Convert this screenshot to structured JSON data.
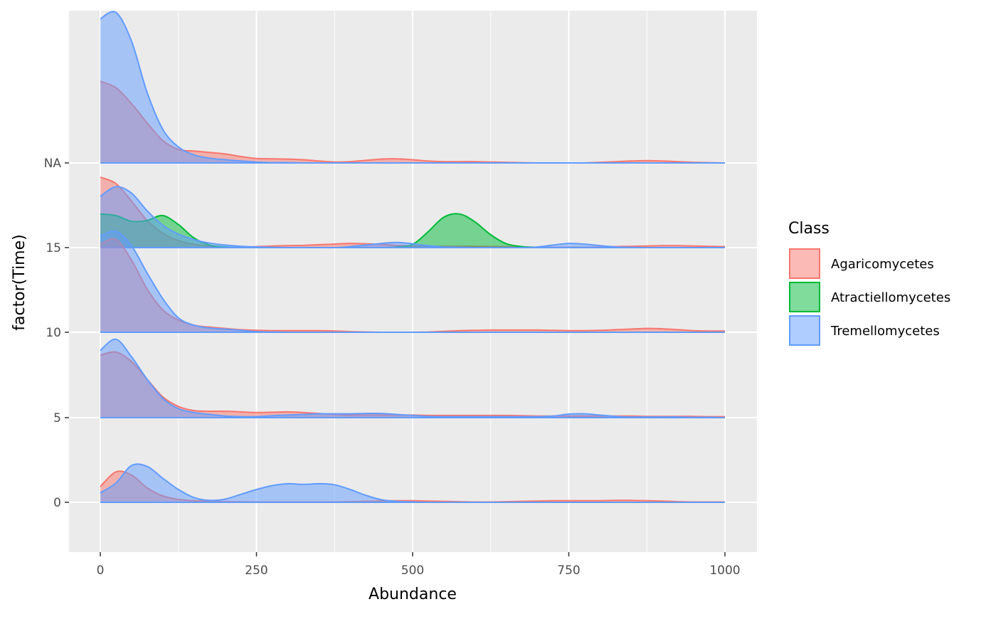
{
  "chart_data": {
    "type": "area",
    "subtype": "ridgeline-density",
    "xlabel": "Abundance",
    "ylabel": "factor(Time)",
    "xlim": [
      -10,
      1010
    ],
    "x_ticks": [
      0,
      250,
      500,
      750,
      1000
    ],
    "x_tick_labels": [
      "0",
      "250",
      "500",
      "750",
      "1000"
    ],
    "y_levels": [
      "0",
      "5",
      "10",
      "15",
      "NA"
    ],
    "y_tick_labels": [
      "0",
      "5",
      "10",
      "15",
      "NA"
    ],
    "grid": true,
    "legend": {
      "title": "Class",
      "placement": "right",
      "entries": [
        "Agaricomycetes",
        "Atractiellomycetes",
        "Tremellomycetes"
      ]
    },
    "colors": {
      "Agaricomycetes": "#F8766D",
      "Atractiellomycetes": "#00BA38",
      "Tremellomycetes": "#619CFF",
      "panel": "#EBEBEB",
      "grid": "#FFFFFF"
    },
    "fill_alpha": 0.5,
    "x": [
      0,
      25,
      50,
      75,
      100,
      125,
      150,
      175,
      200,
      225,
      250,
      275,
      300,
      325,
      350,
      375,
      400,
      425,
      450,
      475,
      500,
      525,
      550,
      575,
      600,
      625,
      650,
      675,
      700,
      725,
      750,
      775,
      800,
      825,
      850,
      875,
      900,
      925,
      950,
      975,
      1000
    ],
    "series": [
      {
        "name": "Agaricomycetes",
        "level": "0",
        "values": [
          0.49,
          0.95,
          0.85,
          0.45,
          0.2,
          0.09,
          0.05,
          0.03,
          0.02,
          0.015,
          0.01,
          0.01,
          0.01,
          0.01,
          0.01,
          0.01,
          0.02,
          0.03,
          0.04,
          0.05,
          0.05,
          0.04,
          0.03,
          0.02,
          0.01,
          0.01,
          0.02,
          0.03,
          0.04,
          0.05,
          0.05,
          0.05,
          0.05,
          0.06,
          0.06,
          0.05,
          0.04,
          0.02,
          0.01,
          0.01,
          0.01
        ]
      },
      {
        "name": "Tremellomycetes",
        "level": "0",
        "values": [
          0.3,
          0.6,
          1.15,
          1.12,
          0.75,
          0.4,
          0.15,
          0.06,
          0.1,
          0.25,
          0.4,
          0.52,
          0.58,
          0.56,
          0.58,
          0.55,
          0.4,
          0.22,
          0.08,
          0.03,
          0.01,
          0.0,
          0.0,
          0.0,
          0.0,
          0.0,
          0.0,
          0.0,
          0.0,
          0.0,
          0.0,
          0.0,
          0.0,
          0.0,
          0.0,
          0.0,
          0.0,
          0.0,
          0.0,
          0.0,
          0.0
        ]
      },
      {
        "name": "Agaricomycetes",
        "level": "5",
        "values": [
          1.95,
          2.05,
          1.75,
          1.2,
          0.65,
          0.35,
          0.22,
          0.2,
          0.2,
          0.18,
          0.16,
          0.17,
          0.18,
          0.16,
          0.13,
          0.1,
          0.08,
          0.08,
          0.08,
          0.08,
          0.08,
          0.07,
          0.07,
          0.07,
          0.07,
          0.07,
          0.07,
          0.06,
          0.05,
          0.05,
          0.05,
          0.05,
          0.05,
          0.05,
          0.05,
          0.04,
          0.04,
          0.04,
          0.04,
          0.03,
          0.03
        ]
      },
      {
        "name": "Tremellomycetes",
        "level": "5",
        "values": [
          2.1,
          2.45,
          1.9,
          1.2,
          0.6,
          0.28,
          0.16,
          0.1,
          0.05,
          0.03,
          0.03,
          0.06,
          0.08,
          0.1,
          0.12,
          0.12,
          0.12,
          0.13,
          0.13,
          0.1,
          0.07,
          0.04,
          0.03,
          0.03,
          0.03,
          0.03,
          0.03,
          0.03,
          0.03,
          0.05,
          0.11,
          0.12,
          0.08,
          0.04,
          0.02,
          0.02,
          0.02,
          0.02,
          0.01,
          0.01,
          0.0
        ]
      },
      {
        "name": "Agaricomycetes",
        "level": "10",
        "values": [
          2.75,
          2.9,
          2.25,
          1.35,
          0.7,
          0.38,
          0.22,
          0.16,
          0.12,
          0.08,
          0.06,
          0.05,
          0.05,
          0.05,
          0.05,
          0.04,
          0.02,
          0.01,
          0.0,
          0.0,
          0.0,
          0.01,
          0.03,
          0.05,
          0.06,
          0.07,
          0.07,
          0.07,
          0.07,
          0.06,
          0.05,
          0.05,
          0.06,
          0.08,
          0.1,
          0.12,
          0.11,
          0.08,
          0.05,
          0.04,
          0.04
        ]
      },
      {
        "name": "Tremellomycetes",
        "level": "10",
        "values": [
          3.0,
          3.15,
          2.7,
          1.85,
          1.05,
          0.45,
          0.22,
          0.13,
          0.1,
          0.06,
          0.02,
          0.01,
          0.0,
          0.0,
          0.0,
          0.0,
          0.0,
          0.0,
          0.0,
          0.0,
          0.0,
          0.0,
          0.0,
          0.0,
          0.0,
          0.0,
          0.0,
          0.0,
          0.0,
          0.0,
          0.0,
          0.0,
          0.0,
          0.0,
          0.0,
          0.0,
          0.0,
          0.0,
          0.0,
          0.0,
          0.0
        ]
      },
      {
        "name": "Agaricomycetes",
        "level": "15",
        "values": [
          2.2,
          2.0,
          1.45,
          0.85,
          0.45,
          0.22,
          0.1,
          0.04,
          0.01,
          0.01,
          0.03,
          0.05,
          0.06,
          0.07,
          0.09,
          0.11,
          0.13,
          0.12,
          0.1,
          0.07,
          0.05,
          0.04,
          0.04,
          0.04,
          0.04,
          0.03,
          0.03,
          0.02,
          0.01,
          0.01,
          0.01,
          0.01,
          0.02,
          0.03,
          0.04,
          0.05,
          0.06,
          0.06,
          0.05,
          0.04,
          0.03
        ]
      },
      {
        "name": "Atractiellomycetes",
        "level": "15",
        "values": [
          1.05,
          1.0,
          0.82,
          0.85,
          1.0,
          0.72,
          0.3,
          0.08,
          0.02,
          0.0,
          0.0,
          0.0,
          0.0,
          0.0,
          0.0,
          0.0,
          0.0,
          0.0,
          0.0,
          0.02,
          0.1,
          0.5,
          0.95,
          1.05,
          0.8,
          0.4,
          0.12,
          0.03,
          0.01,
          0.0,
          0.0,
          0.0,
          0.0,
          0.0,
          0.0,
          0.0,
          0.0,
          0.0,
          0.0,
          0.0,
          0.0
        ]
      },
      {
        "name": "Tremellomycetes",
        "level": "15",
        "values": [
          1.6,
          1.9,
          1.7,
          1.15,
          0.7,
          0.42,
          0.25,
          0.14,
          0.08,
          0.04,
          0.02,
          0.01,
          0.0,
          0.0,
          0.0,
          0.0,
          0.03,
          0.08,
          0.13,
          0.16,
          0.12,
          0.06,
          0.02,
          0.01,
          0.0,
          0.0,
          0.0,
          0.0,
          0.02,
          0.08,
          0.13,
          0.11,
          0.06,
          0.02,
          0.01,
          0.0,
          0.0,
          0.0,
          0.0,
          0.0,
          0.0
        ]
      },
      {
        "name": "Agaricomycetes",
        "level": "NA",
        "values": [
          2.55,
          2.35,
          1.85,
          1.25,
          0.7,
          0.42,
          0.37,
          0.33,
          0.28,
          0.2,
          0.14,
          0.13,
          0.12,
          0.1,
          0.06,
          0.03,
          0.04,
          0.08,
          0.12,
          0.13,
          0.1,
          0.06,
          0.04,
          0.04,
          0.04,
          0.03,
          0.02,
          0.01,
          0.0,
          0.0,
          0.0,
          0.0,
          0.02,
          0.04,
          0.06,
          0.07,
          0.06,
          0.04,
          0.02,
          0.01,
          0.0
        ]
      },
      {
        "name": "Tremellomycetes",
        "level": "NA",
        "values": [
          4.5,
          4.7,
          3.8,
          2.2,
          1.05,
          0.5,
          0.25,
          0.15,
          0.1,
          0.06,
          0.03,
          0.01,
          0.01,
          0.0,
          0.0,
          0.0,
          0.0,
          0.0,
          0.0,
          0.0,
          0.0,
          0.0,
          0.0,
          0.0,
          0.0,
          0.0,
          0.0,
          0.0,
          0.0,
          0.0,
          0.0,
          0.0,
          0.0,
          0.0,
          0.0,
          0.0,
          0.0,
          0.0,
          0.0,
          0.0,
          0.0
        ]
      }
    ]
  }
}
